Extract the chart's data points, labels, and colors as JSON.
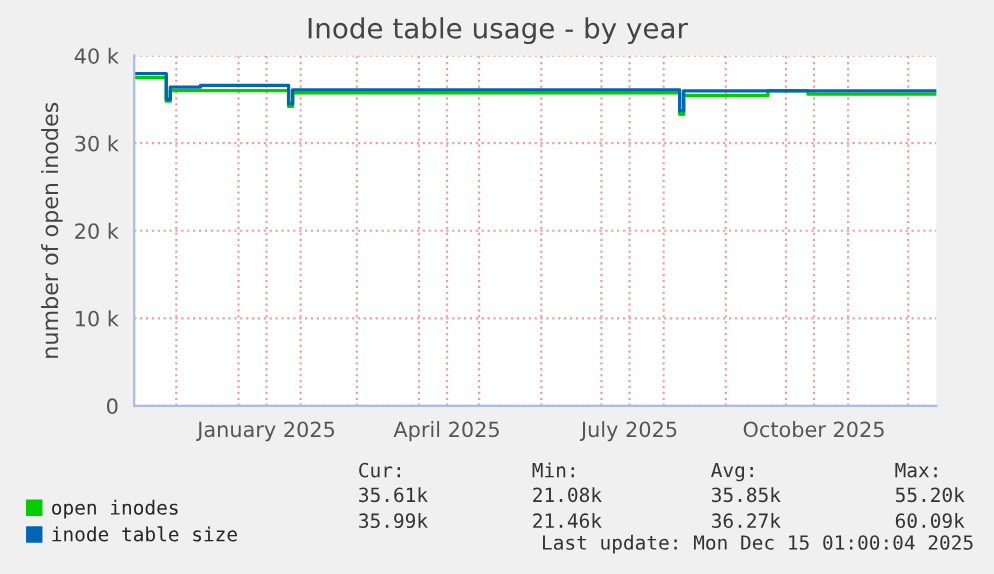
{
  "chart_data": {
    "type": "step",
    "title": "Inode table usage - by year",
    "ylabel": "number of open inodes",
    "xlim": [
      "2024-11-10",
      "2025-12-15"
    ],
    "xticks": [
      {
        "value": "2024-12-01",
        "label": null
      },
      {
        "value": "2025-01-01",
        "label": null
      },
      {
        "value": "2025-01-15",
        "label": "January 2025"
      },
      {
        "value": "2025-02-01",
        "label": null
      },
      {
        "value": "2025-03-01",
        "label": null
      },
      {
        "value": "2025-04-01",
        "label": null
      },
      {
        "value": "2025-04-15",
        "label": "April 2025"
      },
      {
        "value": "2025-05-01",
        "label": null
      },
      {
        "value": "2025-06-01",
        "label": null
      },
      {
        "value": "2025-07-01",
        "label": null
      },
      {
        "value": "2025-07-15",
        "label": "July 2025"
      },
      {
        "value": "2025-08-01",
        "label": null
      },
      {
        "value": "2025-09-01",
        "label": null
      },
      {
        "value": "2025-10-01",
        "label": null
      },
      {
        "value": "2025-10-15",
        "label": "October 2025"
      },
      {
        "value": "2025-11-01",
        "label": null
      },
      {
        "value": "2025-12-01",
        "label": null
      }
    ],
    "ylim": [
      0,
      40000
    ],
    "yticks": [
      {
        "value": 0,
        "label": "0"
      },
      {
        "value": 10000,
        "label": "10 k"
      },
      {
        "value": 20000,
        "label": "20 k"
      },
      {
        "value": 30000,
        "label": "30 k"
      },
      {
        "value": 40000,
        "label": "40 k"
      }
    ],
    "grid": true,
    "legend": "bottom",
    "series": [
      {
        "name": "open inodes",
        "color": "#00cc00",
        "x": [
          "2024-11-10",
          "2024-11-26",
          "2024-11-28",
          "2025-01-26",
          "2025-01-28",
          "2025-08-09",
          "2025-08-11",
          "2025-09-22",
          "2025-10-12",
          "2025-12-15"
        ],
        "values": [
          37500,
          34800,
          36000,
          34200,
          35750,
          33300,
          35450,
          36000,
          35600,
          35600
        ]
      },
      {
        "name": "inode table size",
        "color": "#0066b3",
        "x": [
          "2024-11-10",
          "2024-11-26",
          "2024-11-28",
          "2024-12-13",
          "2025-01-26",
          "2025-01-28",
          "2025-08-09",
          "2025-08-11",
          "2025-12-15"
        ],
        "values": [
          37950,
          35000,
          36400,
          36600,
          34500,
          36100,
          33700,
          35980,
          35980
        ]
      }
    ],
    "annotations": [
      "Cur:",
      "Min:",
      "Avg:",
      "Max:",
      "35.61k",
      "21.08k",
      "35.85k",
      "55.20k",
      "35.99k",
      "21.46k",
      "36.27k",
      "60.09k",
      "Last update: Mon Dec 15 01:00:04 2025"
    ]
  }
}
